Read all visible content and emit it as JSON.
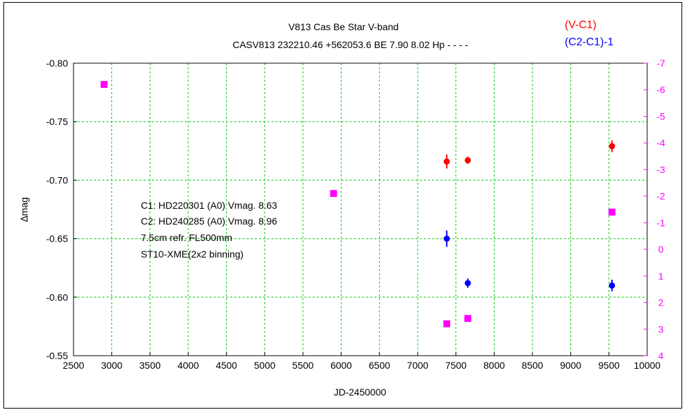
{
  "chart_data": {
    "type": "scatter",
    "title": "V813 Cas    Be Star    V-band",
    "subtitle": "CASV813 232210.46 +562053.6 BE 7.90 8.02 Hp - - - -",
    "xlabel": "JD-2450000",
    "ylabel": "∆mag",
    "xlim": [
      2500,
      10000
    ],
    "x_ticks": [
      2500,
      3000,
      3500,
      4000,
      4500,
      5000,
      5500,
      6000,
      6500,
      7000,
      7500,
      8000,
      8500,
      9000,
      9500,
      10000
    ],
    "ylim_left": [
      -0.8,
      -0.55
    ],
    "y_left_ticks": [
      "-0.80",
      "-0.75",
      "-0.70",
      "-0.65",
      "-0.60",
      "-0.55"
    ],
    "ylim_right": [
      -7,
      4
    ],
    "y_right_ticks": [
      "-7",
      "-6",
      "-5",
      "-4",
      "-3",
      "-2",
      "-1",
      "0",
      "1",
      "2",
      "3",
      "4"
    ],
    "grid": true,
    "legend": [
      {
        "label": "(V-C1)",
        "color": "#ff0000"
      },
      {
        "label": "(C2-C1)-1",
        "color": "#0000ff"
      }
    ],
    "annotations": [
      "C1: HD220301 (A0) Vmag. 8.63",
      "C2: HD240285 (A0) Vmag. 8.96",
      "7.5cm refr. FL500mm",
      "ST10-XME(2x2 binning)"
    ],
    "series": [
      {
        "name": "(V-C1)",
        "axis": "left",
        "marker": "circle",
        "color": "#ff0000",
        "points": [
          {
            "x": 7380,
            "y": -0.716,
            "err": 0.006
          },
          {
            "x": 7655,
            "y": -0.717,
            "err": 0.003
          },
          {
            "x": 9540,
            "y": -0.729,
            "err": 0.005
          }
        ]
      },
      {
        "name": "(C2-C1)-1",
        "axis": "left",
        "marker": "circle",
        "color": "#0000ff",
        "points": [
          {
            "x": 7380,
            "y": -0.65,
            "err": 0.007
          },
          {
            "x": 7655,
            "y": -0.612,
            "err": 0.004
          },
          {
            "x": 9540,
            "y": -0.61,
            "err": 0.005
          }
        ]
      },
      {
        "name": "Hp",
        "axis": "right",
        "marker": "square",
        "color": "#ff00ff",
        "points": [
          {
            "x": 2900,
            "y": -6.2
          },
          {
            "x": 5900,
            "y": -2.1
          },
          {
            "x": 7380,
            "y": 2.8
          },
          {
            "x": 7655,
            "y": 2.6
          },
          {
            "x": 9540,
            "y": -1.4
          }
        ]
      }
    ]
  }
}
